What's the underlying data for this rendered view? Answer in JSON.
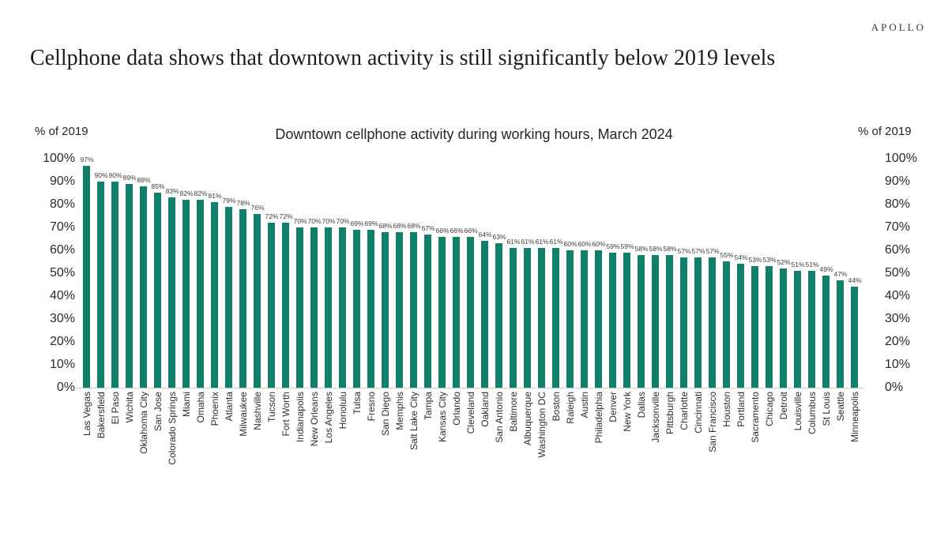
{
  "logo": "APOLLO",
  "heading": "Cellphone data shows that downtown activity is still significantly below 2019 levels",
  "chart_data": {
    "type": "bar",
    "title": "Downtown cellphone activity during working hours, March 2024",
    "ylabel_left": "% of 2019",
    "ylabel_right": "% of 2019",
    "ylim": [
      0,
      100
    ],
    "ytick_step": 10,
    "yticks": [
      "100%",
      "90%",
      "80%",
      "70%",
      "60%",
      "50%",
      "40%",
      "30%",
      "20%",
      "10%",
      "0%"
    ],
    "grid": false,
    "legend": "none",
    "bar_color": "#11806a",
    "axis_line_color": "#cccccc",
    "value_suffix": "%",
    "categories": [
      "Las Vegas",
      "Bakersfield",
      "El Paso",
      "Wichita",
      "Oklahoma City",
      "San Jose",
      "Colorado Springs",
      "Miami",
      "Omaha",
      "Phoenix",
      "Atlanta",
      "Milwaukee",
      "Nashville",
      "Tucson",
      "Fort Worth",
      "Indianapolis",
      "New Orleans",
      "Los Angeles",
      "Honolulu",
      "Tulsa",
      "Fresno",
      "San Diego",
      "Memphis",
      "Salt Lake City",
      "Tampa",
      "Kansas City",
      "Orlando",
      "Cleveland",
      "Oakland",
      "San Antonio",
      "Baltimore",
      "Albuquerque",
      "Washington DC",
      "Boston",
      "Raleigh",
      "Austin",
      "Philadelphia",
      "Denver",
      "New York",
      "Dallas",
      "Jacksonville",
      "Pittsburgh",
      "Charlotte",
      "Cincinnati",
      "San Francisco",
      "Houston",
      "Portland",
      "Sacramento",
      "Chicago",
      "Detroit",
      "Louisville",
      "Columbus",
      "St Louis",
      "Seattle",
      "Minneapolis"
    ],
    "values": [
      97,
      90,
      90,
      89,
      88,
      85,
      83,
      82,
      82,
      81,
      79,
      78,
      76,
      72,
      72,
      70,
      70,
      70,
      70,
      69,
      69,
      68,
      68,
      68,
      67,
      66,
      66,
      66,
      64,
      63,
      61,
      61,
      61,
      61,
      60,
      60,
      60,
      59,
      59,
      58,
      58,
      58,
      57,
      57,
      57,
      55,
      54,
      53,
      53,
      52,
      51,
      51,
      49,
      47,
      44
    ]
  }
}
